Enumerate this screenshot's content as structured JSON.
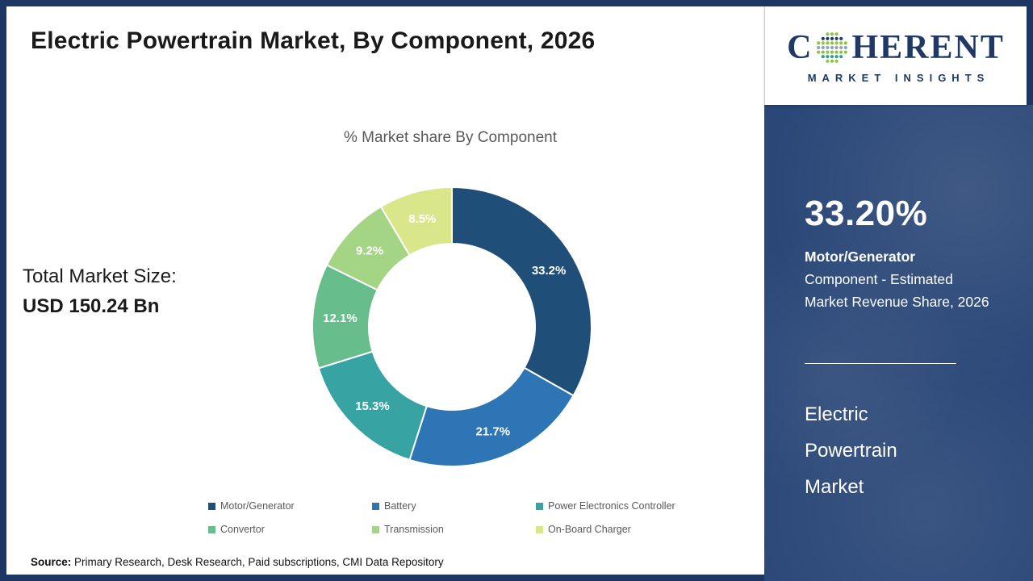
{
  "header": {
    "title": "Electric Powertrain Market, By Component, 2026"
  },
  "brand": {
    "name_prefix": "C",
    "name_suffix": "HERENT",
    "tagline": "MARKET INSIGHTS",
    "navy": "#1f3864",
    "globe_dot_colors": [
      "#2f9e8f",
      "#8cc63f",
      "#1f3864",
      "#8fa3bd"
    ]
  },
  "chart_data": {
    "type": "pie",
    "donut": true,
    "title": "% Market share By Component",
    "start_angle_deg": 0,
    "direction": "clockwise",
    "legend_position": "bottom",
    "segments": [
      {
        "label": "Motor/Generator",
        "value": 33.2,
        "pct_label": "33.2%",
        "color": "#1f4e79"
      },
      {
        "label": "Battery",
        "value": 21.7,
        "pct_label": "21.7%",
        "color": "#2e75b6"
      },
      {
        "label": "Power Electronics Controller",
        "value": 15.3,
        "pct_label": "15.3%",
        "color": "#38a3a3"
      },
      {
        "label": "Convertor",
        "value": 12.1,
        "pct_label": "12.1%",
        "color": "#67bd8b"
      },
      {
        "label": "Transmission",
        "value": 9.2,
        "pct_label": "9.2%",
        "color": "#a3d585"
      },
      {
        "label": "On-Board Charger",
        "value": 8.5,
        "pct_label": "8.5%",
        "color": "#d9e78a"
      }
    ]
  },
  "market_size": {
    "label": "Total Market Size:",
    "value": "USD 150.24 Bn"
  },
  "source": {
    "label": "Source:",
    "text": " Primary Research, Desk Research, Paid subscriptions, CMI Data Repository"
  },
  "sidebar": {
    "highlight_value": "33.20%",
    "highlight_component": "Motor/Generator",
    "highlight_desc": " Component - Estimated Market Revenue Share, 2026",
    "report_title_lines": [
      "Electric",
      "Powertrain",
      "Market"
    ]
  }
}
